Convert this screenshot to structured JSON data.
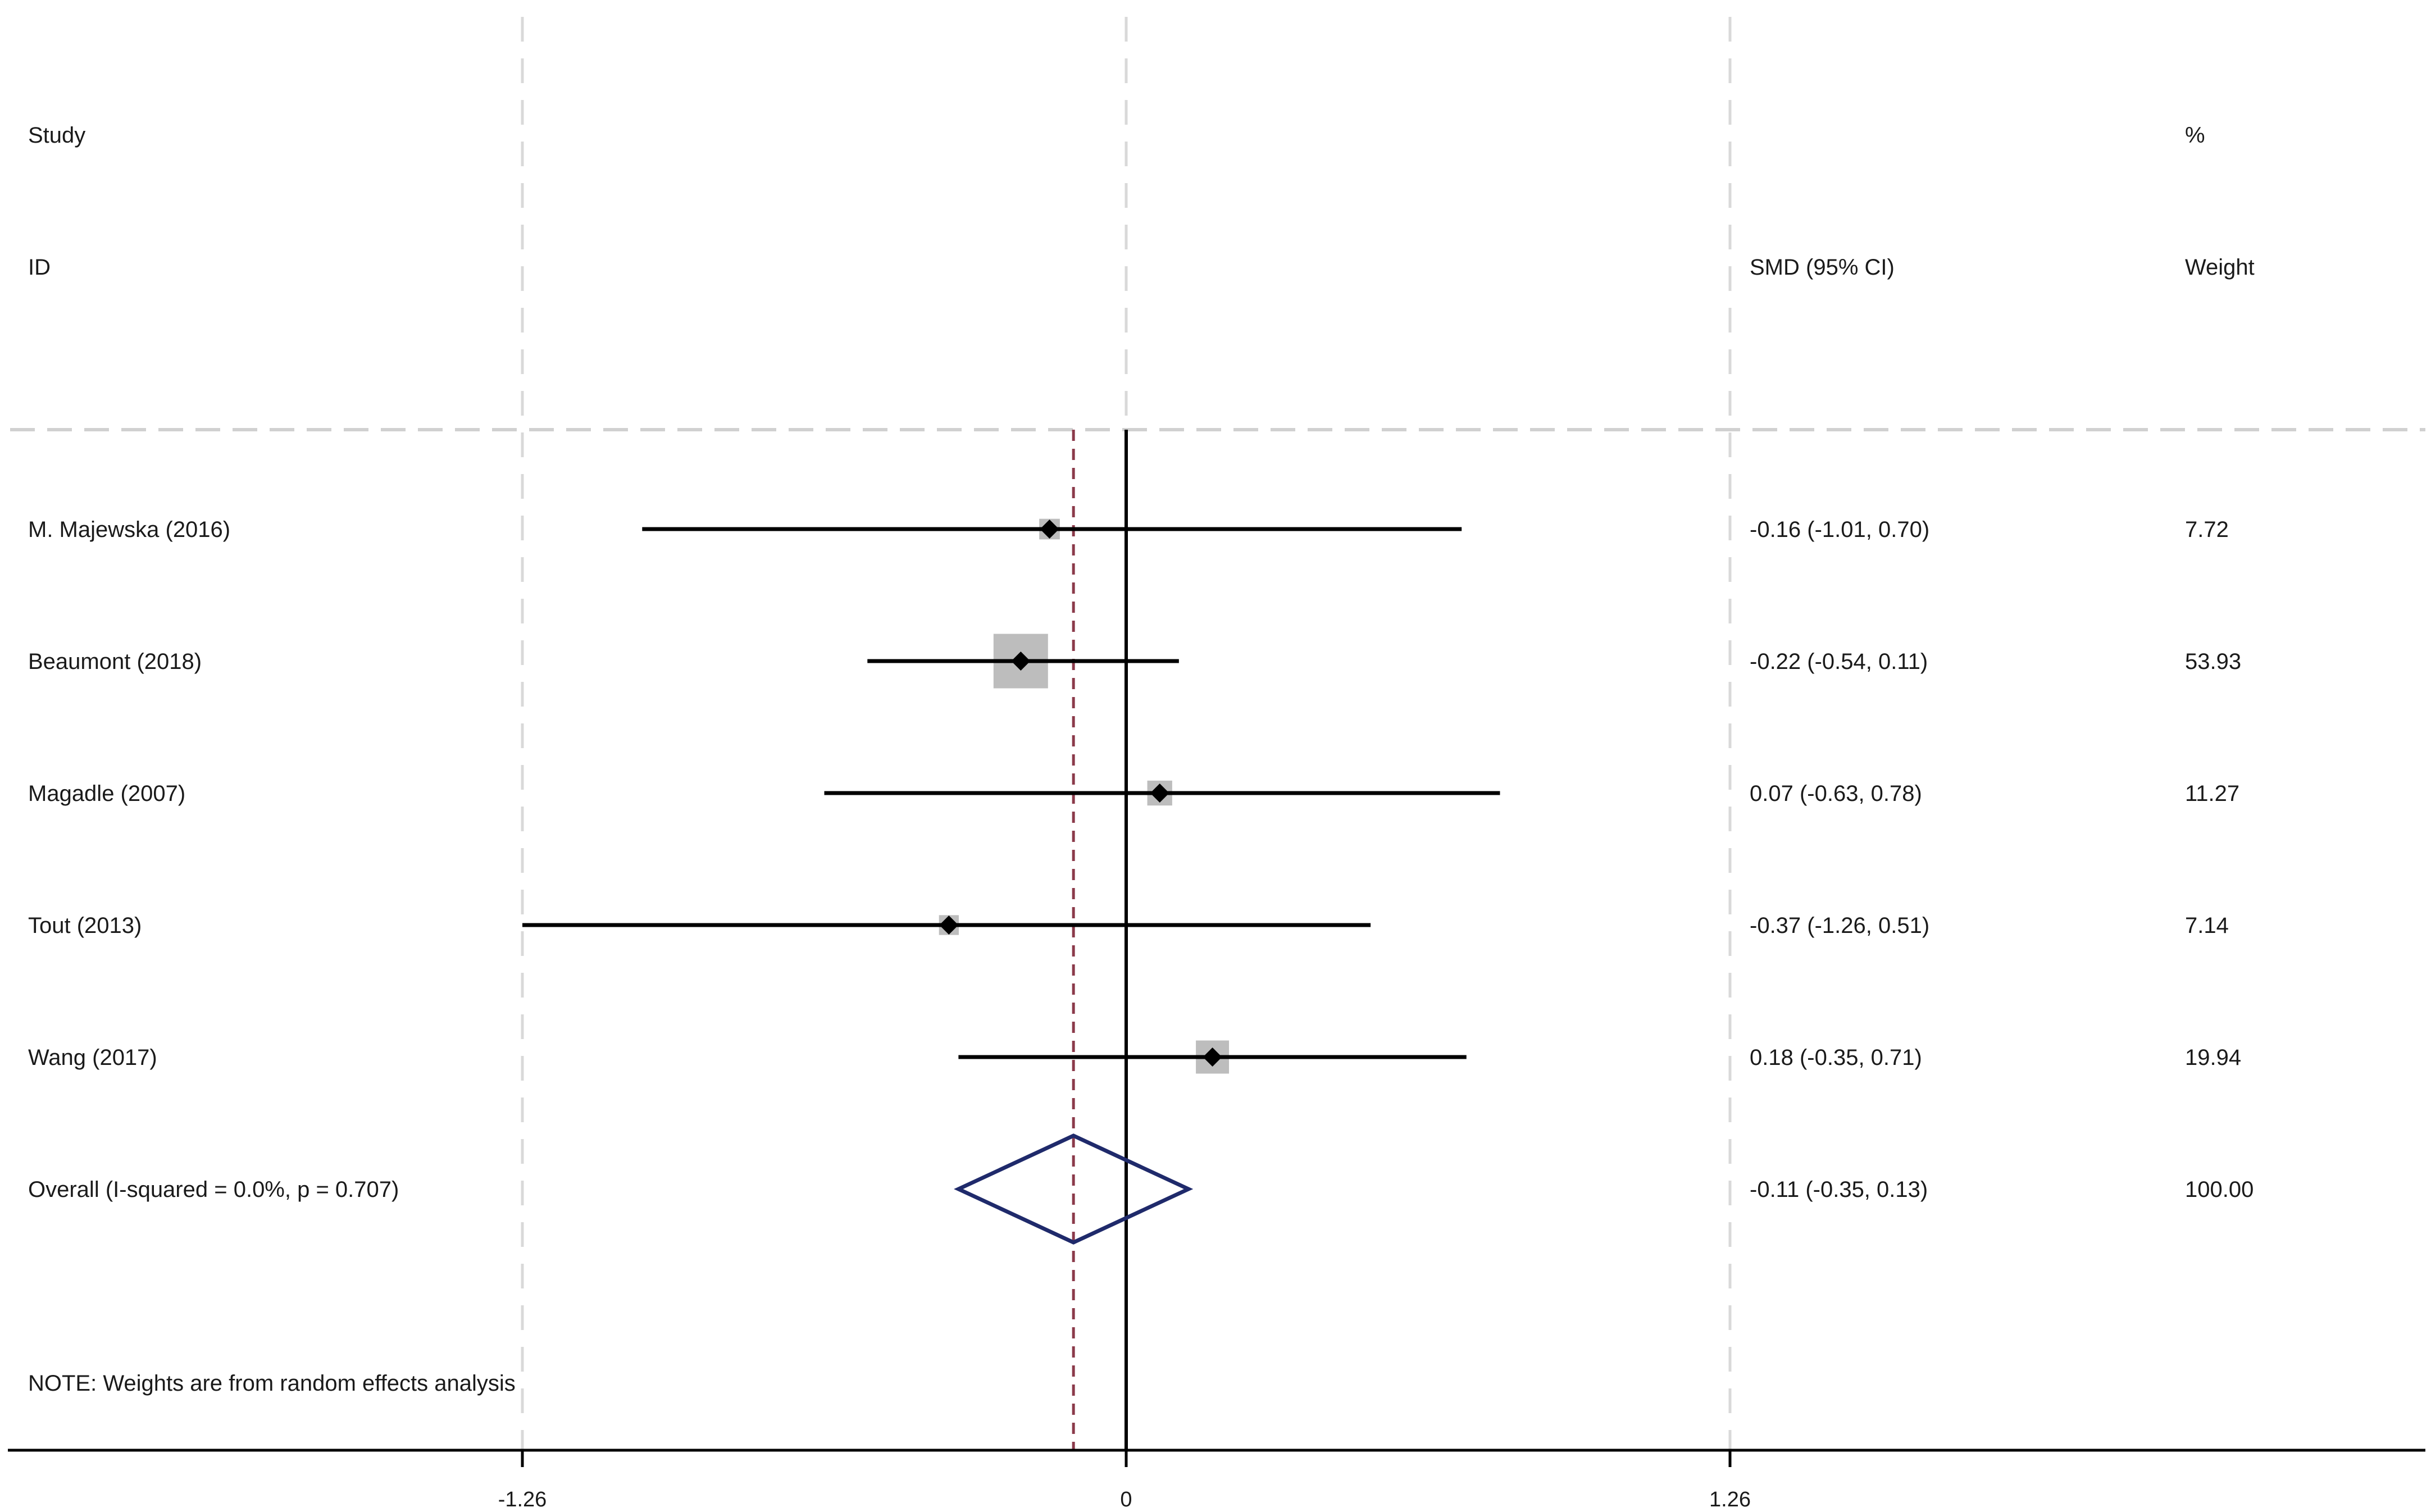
{
  "chart_data": {
    "type": "forest",
    "header": {
      "study_line1": "Study",
      "study_line2": "ID",
      "effect_label": "SMD (95% CI)",
      "weight_line1": "%",
      "weight_line2": "Weight"
    },
    "x_ticks": [
      {
        "value": -1.26,
        "label": "-1.26"
      },
      {
        "value": 0,
        "label": "0"
      },
      {
        "value": 1.26,
        "label": "1.26"
      }
    ],
    "xlim": [
      -2.34,
      2.7
    ],
    "null_line": 0,
    "studies": [
      {
        "label": "M. Majewska (2016)",
        "smd": -0.16,
        "ci_low": -1.01,
        "ci_high": 0.7,
        "ci_text": "-0.16 (-1.01, 0.70)",
        "weight": 7.72,
        "weight_text": "7.72"
      },
      {
        "label": "Beaumont (2018)",
        "smd": -0.22,
        "ci_low": -0.54,
        "ci_high": 0.11,
        "ci_text": "-0.22 (-0.54, 0.11)",
        "weight": 53.93,
        "weight_text": "53.93"
      },
      {
        "label": "Magadle (2007)",
        "smd": 0.07,
        "ci_low": -0.63,
        "ci_high": 0.78,
        "ci_text": "0.07 (-0.63, 0.78)",
        "weight": 11.27,
        "weight_text": "11.27"
      },
      {
        "label": "Tout (2013)",
        "smd": -0.37,
        "ci_low": -1.26,
        "ci_high": 0.51,
        "ci_text": "-0.37 (-1.26, 0.51)",
        "weight": 7.14,
        "weight_text": "7.14"
      },
      {
        "label": "Wang (2017)",
        "smd": 0.18,
        "ci_low": -0.35,
        "ci_high": 0.71,
        "ci_text": "0.18 (-0.35, 0.71)",
        "weight": 19.94,
        "weight_text": "19.94"
      }
    ],
    "overall": {
      "label": "Overall  (I-squared = 0.0%, p = 0.707)",
      "smd": -0.11,
      "ci_low": -0.35,
      "ci_high": 0.13,
      "ci_text": "-0.11 (-0.35, 0.13)",
      "weight_text": "100.00"
    },
    "note": "NOTE: Weights are from random effects analysis",
    "colors": {
      "ci_line": "#000000",
      "weight_box": "#bdbdbd",
      "point": "#000000",
      "overall_diamond": "#1f2a6b",
      "overall_line": "#8b3a4a",
      "grid": "#d9d9d9",
      "axis": "#000000"
    }
  }
}
